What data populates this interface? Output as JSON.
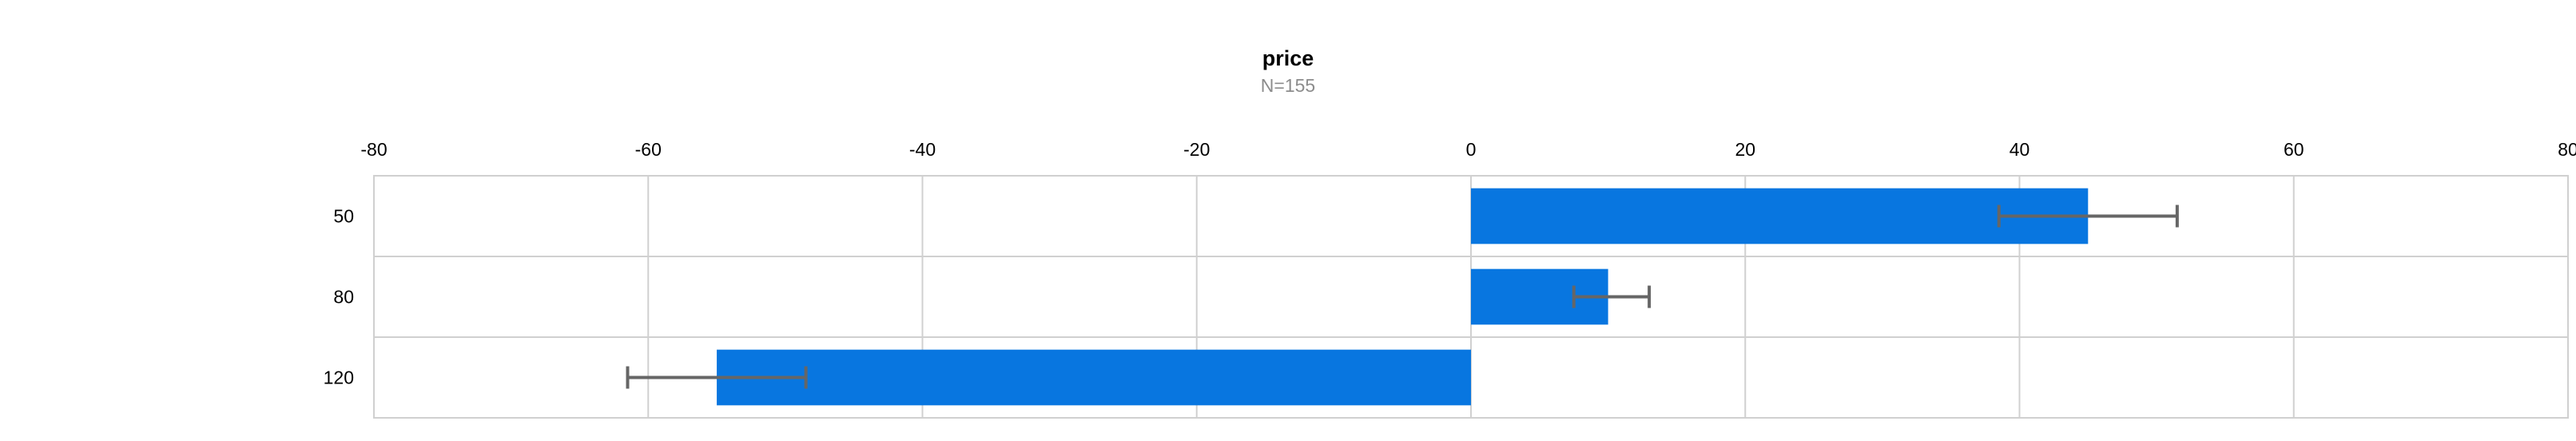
{
  "chart_data": {
    "type": "bar",
    "orientation": "horizontal",
    "title": "price",
    "subtitle": "N=155",
    "xlabel": "",
    "ylabel": "",
    "xlim": [
      -80,
      80
    ],
    "x_ticks": [
      -80,
      -60,
      -40,
      -20,
      0,
      20,
      40,
      60,
      80
    ],
    "x_axis_position": "top",
    "grid": true,
    "categories": [
      "50",
      "80",
      "120"
    ],
    "values": [
      45,
      10,
      -55
    ],
    "error_low": [
      38.5,
      7.5,
      -61.5
    ],
    "error_high": [
      51.5,
      13,
      -48.5
    ],
    "colors": {
      "bar": "#0876e0",
      "error_bar": "#666666",
      "grid": "#d0d0d0"
    }
  }
}
